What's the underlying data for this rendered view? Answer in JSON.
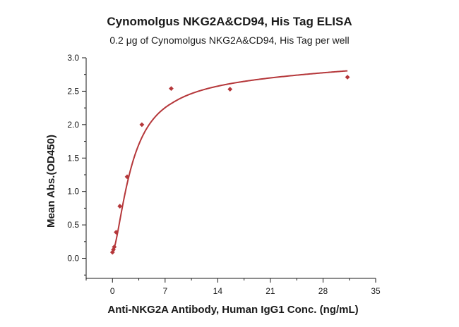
{
  "chart_data": {
    "type": "scatter",
    "title": "Cynomolgus NKG2A&CD94, His Tag ELISA",
    "subtitle": "0.2 μg of Cynomolgus NKG2A&CD94, His Tag per well",
    "xlabel": "Anti-NKG2A Antibody, Human IgG1 Conc. (ng/mL)",
    "ylabel": "Mean Abs.(OD450)",
    "xlim": [
      -3.5,
      35
    ],
    "ylim": [
      -0.3,
      3.0
    ],
    "xticks": [
      0,
      7,
      14,
      21,
      28,
      35
    ],
    "yticks": [
      0.0,
      0.5,
      1.0,
      1.5,
      2.0,
      2.5,
      3.0
    ],
    "xtick_labels": [
      "0",
      "7",
      "14",
      "21",
      "28",
      "35"
    ],
    "ytick_labels": [
      "0.0",
      "0.5",
      "1.0",
      "1.5",
      "2.0",
      "2.5",
      "3.0"
    ],
    "grid": false,
    "color": "#b5373a",
    "series": [
      {
        "x": [
          0.0,
          0.12,
          0.24,
          0.49,
          0.98,
          1.95,
          3.91,
          7.81,
          15.63,
          31.25
        ],
        "y": [
          0.09,
          0.13,
          0.17,
          0.39,
          0.78,
          1.22,
          2.0,
          2.54,
          2.53,
          2.71
        ],
        "marker": "diamond",
        "fit": "4PL"
      }
    ]
  }
}
